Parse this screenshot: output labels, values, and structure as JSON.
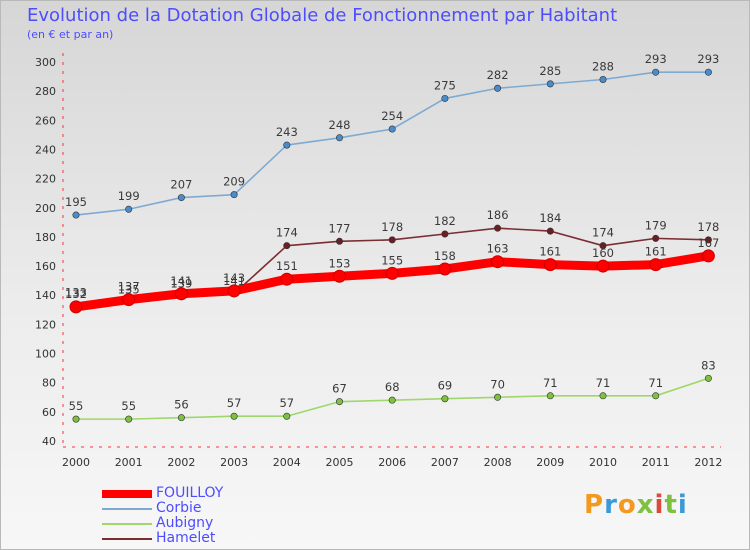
{
  "title": "Evolution de la Dotation Globale de Fonctionnement par Habitant",
  "subtitle": "(en € et par an)",
  "logo": {
    "text": "Proxiti",
    "colors": [
      "#f39a1e",
      "#3a9ad9",
      "#f39a1e",
      "#7ec040",
      "#d94a3a",
      "#7ec040",
      "#3a9ad9"
    ]
  },
  "chart_data": {
    "type": "line",
    "title": "Evolution de la Dotation Globale de Fonctionnement par Habitant",
    "subtitle": "(en € et par an)",
    "x": [
      "2000",
      "2001",
      "2002",
      "2003",
      "2004",
      "2005",
      "2006",
      "2007",
      "2008",
      "2009",
      "2010",
      "2011",
      "2012"
    ],
    "ylim": [
      40,
      300
    ],
    "yticks": [
      40,
      60,
      80,
      100,
      120,
      140,
      160,
      180,
      200,
      220,
      240,
      260,
      280,
      300
    ],
    "grid": false,
    "legend_position": "bottom-left",
    "series": [
      {
        "name": "Corbie",
        "color": "#7eaad2",
        "marker": "#4a8ccb",
        "emphasis": false,
        "values": [
          195,
          199,
          207,
          209,
          243,
          248,
          254,
          275,
          282,
          285,
          288,
          293,
          293
        ]
      },
      {
        "name": "Hamelet",
        "color": "#7a2e33",
        "marker": "#6b1f24",
        "emphasis": false,
        "values": [
          133,
          135,
          139,
          141,
          174,
          177,
          178,
          182,
          186,
          184,
          174,
          179,
          178
        ]
      },
      {
        "name": "FOUILLOY",
        "color": "#ff0000",
        "marker": "#ff0000",
        "emphasis": true,
        "values": [
          132,
          137,
          141,
          143,
          151,
          153,
          155,
          158,
          163,
          161,
          160,
          161,
          167
        ]
      },
      {
        "name": "Aubigny",
        "color": "#9ed76b",
        "marker": "#7ec040",
        "emphasis": false,
        "values": [
          55,
          55,
          56,
          57,
          57,
          67,
          68,
          69,
          70,
          71,
          71,
          71,
          83
        ]
      }
    ],
    "legend_order": [
      "FOUILLOY",
      "Corbie",
      "Aubigny",
      "Hamelet"
    ]
  }
}
